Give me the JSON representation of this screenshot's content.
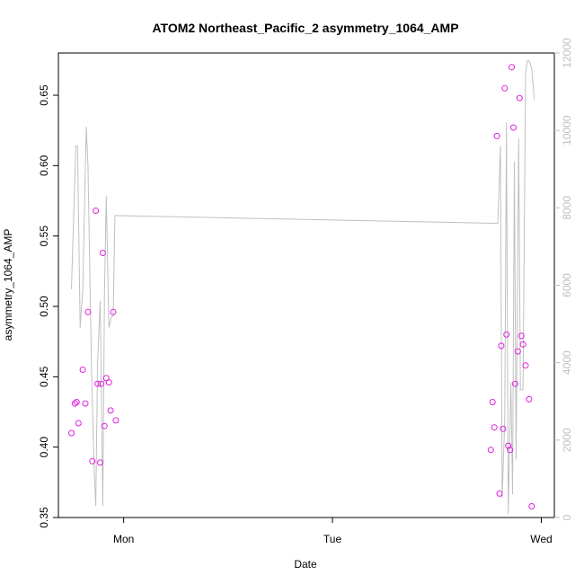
{
  "chart_data": {
    "type": "scatter",
    "title": "ATOM2 Northeast_Pacific_2 asymmetry_1064_AMP",
    "xlabel": "Date",
    "ylabel": "asymmetry_1064_AMP",
    "x_ticks": [
      "Mon",
      "Tue",
      "Wed"
    ],
    "x_tick_values": [
      24,
      48,
      72
    ],
    "xlim": [
      16.5,
      73.5
    ],
    "ylim": [
      0.35,
      0.68
    ],
    "y_ticks": [
      0.35,
      0.4,
      0.45,
      0.5,
      0.55,
      0.6,
      0.65
    ],
    "y_tick_labels": [
      "0.35",
      "0.40",
      "0.45",
      "0.50",
      "0.55",
      "0.60",
      "0.65"
    ],
    "y2lim": [
      0,
      12000
    ],
    "y2_ticks": [
      0,
      2000,
      4000,
      6000,
      8000,
      10000,
      12000
    ],
    "y2_tick_labels": [
      "0",
      "2000",
      "4000",
      "6000",
      "8000",
      "10000",
      "12000"
    ],
    "grid": false,
    "colors": {
      "points": "#e01fe0",
      "line": "#c0c0c0",
      "axis": "#000000",
      "secondary_axis": "#bfbfbf"
    },
    "series": [
      {
        "type": "scatter",
        "axis": "left",
        "x": [
          18.0,
          18.4,
          18.6,
          18.8,
          19.3,
          19.6,
          19.9,
          20.4,
          20.8,
          21.0,
          21.3,
          21.4,
          21.6,
          21.8,
          22.0,
          22.3,
          22.5,
          22.8,
          23.1,
          66.2,
          66.4,
          66.6,
          66.9,
          67.2,
          67.4,
          67.6,
          67.8,
          68.0,
          68.2,
          68.4,
          68.6,
          68.8,
          69.0,
          69.3,
          69.5,
          69.7,
          69.9,
          70.2,
          70.6,
          70.9
        ],
        "y": [
          0.41,
          0.431,
          0.432,
          0.417,
          0.455,
          0.431,
          0.496,
          0.39,
          0.568,
          0.445,
          0.389,
          0.445,
          0.538,
          0.415,
          0.449,
          0.446,
          0.426,
          0.496,
          0.419,
          0.398,
          0.432,
          0.414,
          0.621,
          0.367,
          0.472,
          0.413,
          0.655,
          0.48,
          0.401,
          0.398,
          0.67,
          0.627,
          0.445,
          0.468,
          0.648,
          0.479,
          0.473,
          0.458,
          0.434,
          0.358
        ]
      },
      {
        "type": "line",
        "axis": "right",
        "x": [
          18.0,
          18.5,
          18.7,
          19.0,
          19.3,
          19.7,
          19.9,
          20.3,
          20.6,
          20.8,
          21.0,
          21.3,
          21.6,
          21.8,
          22.0,
          22.3,
          22.6,
          22.8,
          23.0,
          67.0,
          67.3,
          67.5,
          67.8,
          68.0,
          68.2,
          68.5,
          68.7,
          68.9,
          69.1,
          69.4,
          69.6,
          69.9,
          70.2,
          70.4,
          70.6,
          70.9,
          71.2
        ],
        "y": [
          5900,
          9600,
          9600,
          4900,
          5900,
          10100,
          9100,
          3900,
          1300,
          300,
          4000,
          5600,
          300,
          5800,
          8300,
          4900,
          5200,
          5200,
          7800,
          7600,
          9600,
          500,
          2500,
          10200,
          100,
          3500,
          600,
          9200,
          1500,
          9800,
          3300,
          3300,
          11500,
          11800,
          11800,
          11600,
          10800
        ]
      }
    ]
  }
}
